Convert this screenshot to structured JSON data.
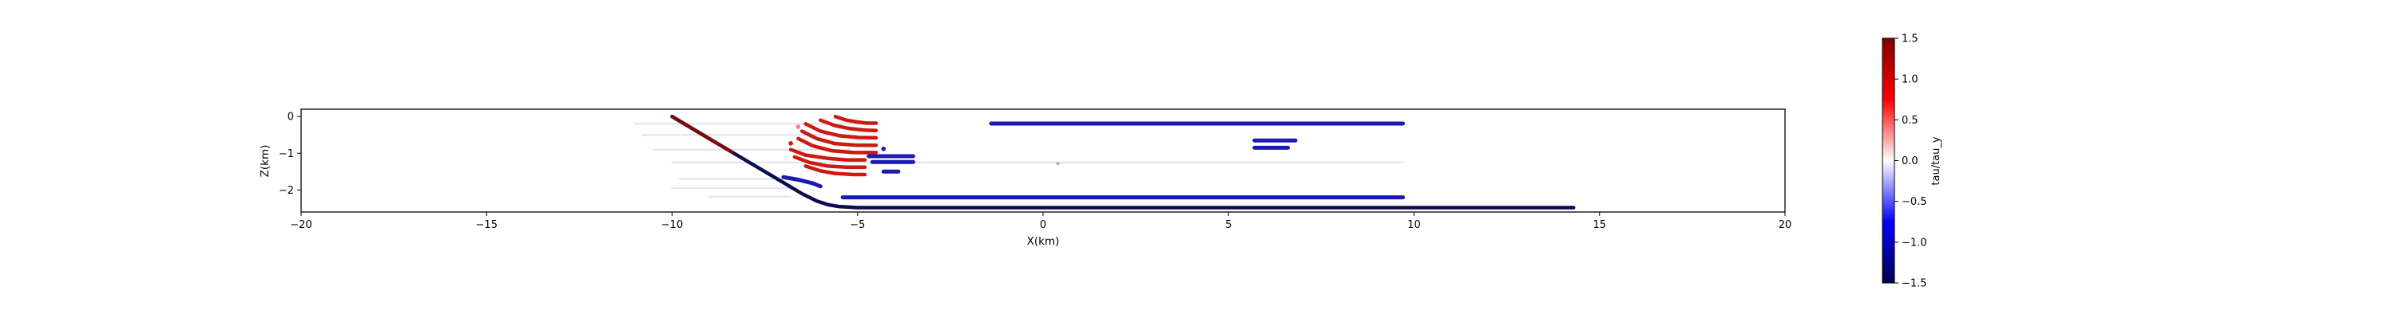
{
  "chart_data": {
    "type": "scatter",
    "xlabel": "X(km)",
    "ylabel": "Z(km)",
    "xlim": [
      -20,
      20
    ],
    "ylim": [
      -2.6,
      0.2
    ],
    "xticks": [
      "−20",
      "−15",
      "−10",
      "−5",
      "0",
      "5",
      "10",
      "15",
      "20"
    ],
    "xtick_values": [
      -20,
      -15,
      -10,
      -5,
      0,
      5,
      10,
      15,
      20
    ],
    "yticks": [
      "0",
      "−1",
      "−2"
    ],
    "ytick_values": [
      0,
      -1,
      -2
    ],
    "grid": false,
    "colorbar": {
      "label": "tau/tau_y",
      "range": [
        -1.5,
        1.5
      ],
      "ticks": [
        "1.5",
        "1.0",
        "0.5",
        "0.0",
        "−0.5",
        "−1.0",
        "−1.5"
      ],
      "tick_values": [
        1.5,
        1.0,
        0.5,
        0.0,
        -0.5,
        -1.0,
        -1.5
      ],
      "colormap": "seismic"
    },
    "colors": {
      "fault": "#0d0d4d",
      "fault_upper": "#7a0c0c",
      "red": "#cc1a10",
      "blue": "#1a1ab4"
    },
    "fault_trace": {
      "x": [
        -10.0,
        -9.0,
        -8.0,
        -7.0,
        -6.5,
        -6.1,
        -5.8,
        -5.5,
        -5.0,
        -4.0,
        0.0,
        5.0,
        10.0,
        14.3
      ],
      "z": [
        0.0,
        -0.6,
        -1.2,
        -1.8,
        -2.1,
        -2.3,
        -2.4,
        -2.45,
        -2.48,
        -2.48,
        -2.48,
        -2.48,
        -2.48,
        -2.48
      ],
      "upper_color_until_x": -8.4
    },
    "red_arcs": [
      {
        "x": [
          -5.6,
          -5.3,
          -5.0,
          -4.75,
          -4.5
        ],
        "z": [
          0.0,
          -0.1,
          -0.15,
          -0.18,
          -0.18
        ]
      },
      {
        "x": [
          -6.0,
          -5.6,
          -5.2,
          -4.8,
          -4.5
        ],
        "z": [
          -0.1,
          -0.25,
          -0.33,
          -0.37,
          -0.38
        ]
      },
      {
        "x": [
          -6.4,
          -6.0,
          -5.5,
          -5.0,
          -4.5
        ],
        "z": [
          -0.2,
          -0.4,
          -0.52,
          -0.57,
          -0.58
        ]
      },
      {
        "x": [
          -6.5,
          -6.1,
          -5.6,
          -5.0,
          -4.5
        ],
        "z": [
          -0.4,
          -0.6,
          -0.74,
          -0.78,
          -0.78
        ]
      },
      {
        "x": [
          -6.6,
          -6.2,
          -5.7,
          -5.1,
          -4.5
        ],
        "z": [
          -0.6,
          -0.8,
          -0.93,
          -0.98,
          -0.98
        ]
      },
      {
        "x": [
          -6.8,
          -6.4,
          -5.8,
          -5.3,
          -4.8
        ],
        "z": [
          -0.9,
          -1.05,
          -1.14,
          -1.18,
          -1.18
        ]
      },
      {
        "x": [
          -6.7,
          -6.3,
          -5.8,
          -5.3,
          -4.8
        ],
        "z": [
          -1.1,
          -1.25,
          -1.35,
          -1.38,
          -1.38
        ]
      },
      {
        "x": [
          -6.4,
          -6.0,
          -5.6,
          -5.1,
          -4.8
        ],
        "z": [
          -1.35,
          -1.48,
          -1.55,
          -1.58,
          -1.58
        ]
      }
    ],
    "red_points": [
      {
        "x": -6.8,
        "z": -0.73
      },
      {
        "x": -6.6,
        "z": -0.28
      }
    ],
    "blue_segments": [
      {
        "x": [
          -1.4,
          9.7
        ],
        "z": [
          -0.19,
          -0.19
        ]
      },
      {
        "x": [
          5.7,
          6.8
        ],
        "z": [
          -0.65,
          -0.65
        ]
      },
      {
        "x": [
          5.7,
          6.6
        ],
        "z": [
          -0.85,
          -0.85
        ]
      },
      {
        "x": [
          -4.7,
          -3.5
        ],
        "z": [
          -1.08,
          -1.08
        ]
      },
      {
        "x": [
          -4.6,
          -3.5
        ],
        "z": [
          -1.24,
          -1.24
        ]
      },
      {
        "x": [
          -4.3,
          -3.9
        ],
        "z": [
          -1.5,
          -1.5
        ]
      },
      {
        "x": [
          -5.4,
          9.7
        ],
        "z": [
          -2.2,
          -2.2
        ]
      },
      {
        "x": [
          -7.0,
          -6.6,
          -6.2,
          -6.0
        ],
        "z": [
          -1.65,
          -1.72,
          -1.82,
          -1.9
        ]
      }
    ],
    "blue_points": [
      {
        "x": -4.3,
        "z": -0.88
      }
    ],
    "faint_streaks": [
      {
        "x": [
          -11.0,
          -5.0
        ],
        "z": [
          -0.2,
          -0.2
        ]
      },
      {
        "x": [
          -10.8,
          -5.0
        ],
        "z": [
          -0.5,
          -0.5
        ]
      },
      {
        "x": [
          -10.5,
          -5.2
        ],
        "z": [
          -0.9,
          -0.9
        ]
      },
      {
        "x": [
          -10.0,
          9.7
        ],
        "z": [
          -1.25,
          -1.25
        ]
      },
      {
        "x": [
          -9.8,
          -6.5
        ],
        "z": [
          -1.7,
          -1.7
        ]
      },
      {
        "x": [
          -10.0,
          -6.8
        ],
        "z": [
          -1.95,
          -1.95
        ]
      },
      {
        "x": [
          -9.0,
          -6.8
        ],
        "z": [
          -2.18,
          -2.18
        ]
      }
    ],
    "faint_points": [
      {
        "x": 0.4,
        "z": -1.28
      }
    ]
  }
}
